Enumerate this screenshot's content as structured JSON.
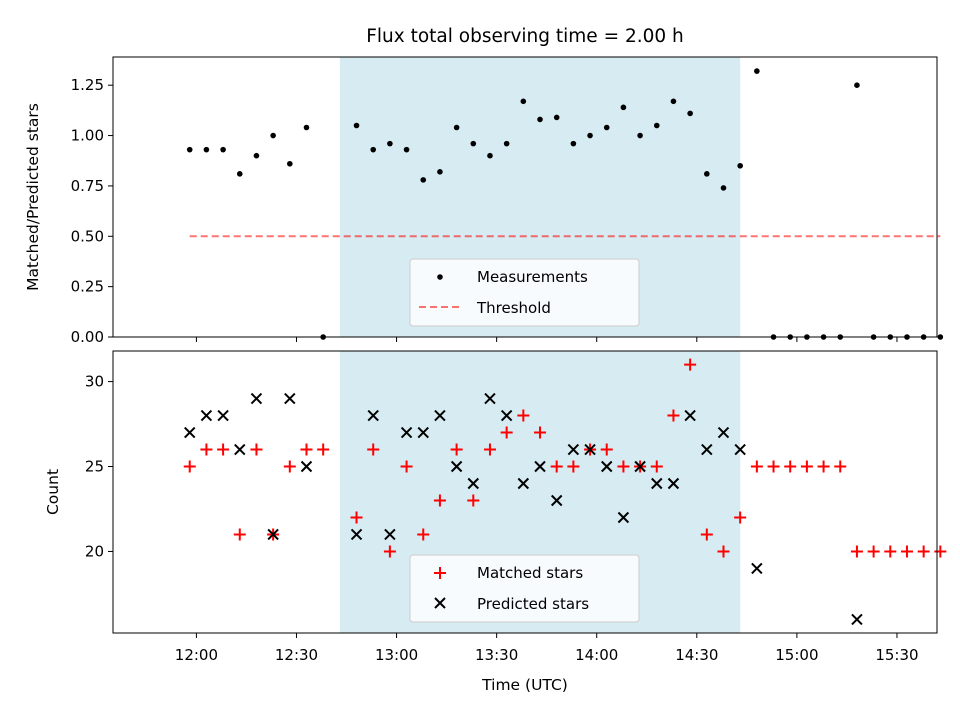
{
  "chart_data": [
    {
      "type": "scatter",
      "title": "Flux total observing time = 2.00 h",
      "xlabel": "",
      "ylabel": "Matched/Predicted stars",
      "ylim": [
        0,
        1.39
      ],
      "yticks": [
        "0.00",
        "0.25",
        "0.50",
        "0.75",
        "1.00",
        "1.25"
      ],
      "ytick_values": [
        0,
        0.25,
        0.5,
        0.75,
        1.0,
        1.25
      ],
      "xlim_minutes": [
        -25,
        222
      ],
      "highlight_span_minutes": [
        43,
        163
      ],
      "highlight_color": "#add8e6",
      "threshold": {
        "name": "Threshold",
        "value": 0.5,
        "x_range_minutes": [
          -2,
          223
        ],
        "color": "#ff0000"
      },
      "legend": {
        "position": "lower-center",
        "entries": [
          "Measurements",
          "Threshold"
        ]
      },
      "series": [
        {
          "name": "Measurements",
          "color": "#000000",
          "x_minutes": [
            -2,
            3,
            8,
            13,
            18,
            23,
            28,
            33,
            38,
            48,
            53,
            58,
            63,
            68,
            73,
            78,
            83,
            88,
            93,
            98,
            103,
            108,
            113,
            118,
            123,
            128,
            133,
            138,
            143,
            148,
            153,
            158,
            163,
            168,
            173,
            178,
            183,
            188,
            193,
            198,
            203,
            208,
            213,
            218,
            223
          ],
          "values": [
            0.93,
            0.93,
            0.93,
            0.81,
            0.9,
            1.0,
            0.86,
            1.04,
            0.0,
            1.05,
            0.93,
            0.96,
            0.93,
            0.78,
            0.82,
            1.04,
            0.96,
            0.9,
            0.96,
            1.17,
            1.08,
            1.09,
            0.96,
            1.0,
            1.04,
            1.14,
            1.0,
            1.05,
            1.17,
            1.11,
            0.81,
            0.74,
            0.85,
            1.32,
            0,
            0,
            0,
            0,
            0,
            1.25,
            0,
            0,
            0,
            0,
            0
          ]
        }
      ]
    },
    {
      "type": "scatter",
      "title": "",
      "xlabel": "Time (UTC)",
      "ylabel": "Count",
      "ylim": [
        15.2,
        31.8
      ],
      "yticks": [
        "20",
        "25",
        "30"
      ],
      "ytick_values": [
        20,
        25,
        30
      ],
      "xticks": [
        "12:00",
        "12:30",
        "13:00",
        "13:30",
        "14:00",
        "14:30",
        "15:00",
        "15:30"
      ],
      "xtick_minutes": [
        0,
        30,
        60,
        90,
        120,
        150,
        180,
        210
      ],
      "xlim_minutes": [
        -25,
        222
      ],
      "highlight_span_minutes": [
        43,
        163
      ],
      "legend": {
        "position": "lower-center",
        "entries": [
          "Matched stars",
          "Predicted stars"
        ]
      },
      "series": [
        {
          "name": "Matched stars",
          "marker": "+",
          "color": "#ff0000",
          "x_minutes": [
            -2,
            3,
            8,
            13,
            18,
            23,
            28,
            33,
            38,
            48,
            53,
            58,
            63,
            68,
            73,
            78,
            83,
            88,
            93,
            98,
            103,
            108,
            113,
            118,
            123,
            128,
            133,
            138,
            143,
            148,
            153,
            158,
            163,
            168,
            173,
            178,
            183,
            188,
            193,
            198,
            203,
            208,
            213,
            218,
            223
          ],
          "values": [
            25,
            26,
            26,
            21,
            26,
            21,
            25,
            26,
            26,
            22,
            26,
            20,
            25,
            21,
            23,
            26,
            23,
            26,
            27,
            28,
            27,
            25,
            25,
            26,
            26,
            25,
            25,
            25,
            28,
            31,
            21,
            20,
            22,
            25,
            25,
            25,
            25,
            25,
            25,
            20,
            20,
            20,
            20,
            20,
            20
          ]
        },
        {
          "name": "Predicted stars",
          "marker": "x",
          "color": "#000000",
          "x_minutes": [
            -2,
            3,
            8,
            13,
            18,
            23,
            28,
            33,
            48,
            53,
            58,
            63,
            68,
            73,
            78,
            83,
            88,
            93,
            98,
            103,
            108,
            113,
            118,
            123,
            128,
            133,
            138,
            143,
            148,
            153,
            158,
            163,
            168,
            198
          ],
          "values": [
            27,
            28,
            28,
            26,
            29,
            21,
            29,
            25,
            21,
            28,
            21,
            27,
            27,
            28,
            25,
            24,
            29,
            28,
            24,
            25,
            23,
            26,
            26,
            25,
            22,
            25,
            24,
            24,
            28,
            26,
            27,
            26,
            19,
            16
          ]
        }
      ]
    }
  ]
}
